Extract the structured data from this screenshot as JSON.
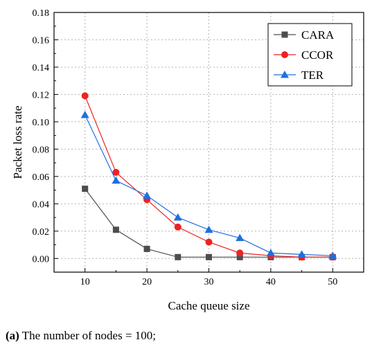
{
  "chart_data": {
    "type": "line",
    "x": [
      10,
      15,
      20,
      25,
      30,
      35,
      40,
      45,
      50
    ],
    "xlabel": "Cache queue size",
    "ylabel": "Packet loss rate",
    "xlim": [
      5,
      55
    ],
    "ylim": [
      -0.01,
      0.18
    ],
    "xticks": [
      "10",
      "20",
      "30",
      "40",
      "50"
    ],
    "yticks": [
      "0.00",
      "0.02",
      "0.04",
      "0.06",
      "0.08",
      "0.10",
      "0.12",
      "0.14",
      "0.16",
      "0.18"
    ],
    "grid": true,
    "legend_position": "top-right",
    "series": [
      {
        "name": "CARA",
        "marker": "square",
        "color": "#4d4d4d",
        "values": [
          0.051,
          0.021,
          0.007,
          0.001,
          0.001,
          0.001,
          0.001,
          0.001,
          0.001
        ]
      },
      {
        "name": "CCOR",
        "marker": "circle",
        "color": "#ee2222",
        "values": [
          0.119,
          0.063,
          0.043,
          0.023,
          0.012,
          0.004,
          0.002,
          0.001,
          0.001
        ]
      },
      {
        "name": "TER",
        "marker": "triangle",
        "color": "#1f6fe0",
        "values": [
          0.105,
          0.057,
          0.046,
          0.03,
          0.021,
          0.015,
          0.004,
          0.003,
          0.002
        ]
      }
    ]
  },
  "caption": {
    "label": "(a)",
    "text": " The number of nodes = 100;"
  }
}
